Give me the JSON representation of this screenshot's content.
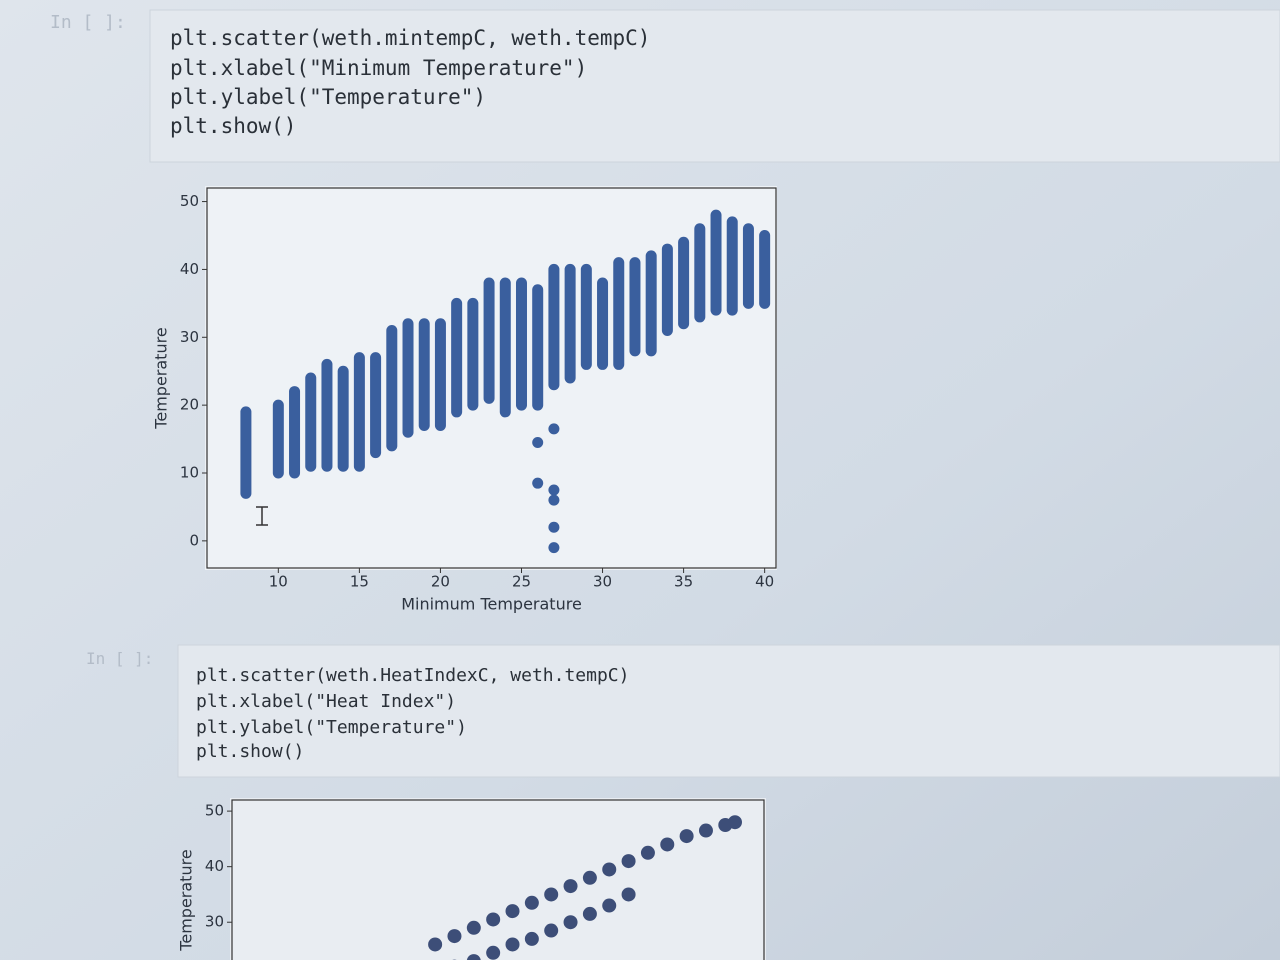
{
  "cells": [
    {
      "prompt": "In [ ]:",
      "code": [
        "plt.scatter(weth.mintempC, weth.tempC)",
        "plt.xlabel(\"Minimum Temperature\")",
        "plt.ylabel(\"Temperature\")",
        "plt.show()"
      ]
    },
    {
      "prompt": "In [ ]:",
      "code": [
        "plt.scatter(weth.HeatIndexC, weth.tempC)",
        "plt.xlabel(\"Heat Index\")",
        "plt.ylabel(\"Temperature\")",
        "plt.show()"
      ]
    }
  ],
  "chart_data": [
    {
      "type": "scatter",
      "color": "#3a5f9e",
      "xlabel": "Minimum Temperature",
      "ylabel": "Temperature",
      "x": [
        8,
        10,
        11,
        12,
        13,
        14,
        15,
        16,
        17,
        18,
        19,
        20,
        21,
        22,
        23,
        24,
        25,
        26,
        27,
        28,
        29,
        30,
        31,
        32,
        33,
        34,
        35,
        36,
        37,
        38,
        39,
        40
      ],
      "ymin": [
        7,
        10,
        10,
        11,
        11,
        11,
        11,
        13,
        14,
        16,
        17,
        17,
        19,
        20,
        21,
        19,
        20,
        20,
        23,
        24,
        26,
        26,
        26,
        28,
        28,
        31,
        32,
        33,
        34,
        34,
        35,
        35
      ],
      "ymax": [
        19,
        20,
        22,
        24,
        26,
        25,
        27,
        27,
        31,
        32,
        32,
        32,
        35,
        35,
        38,
        38,
        38,
        37,
        40,
        40,
        40,
        38,
        41,
        41,
        42,
        43,
        44,
        46,
        48,
        47,
        46,
        45
      ],
      "outliers": {
        "x": [
          26,
          26,
          27,
          27,
          27,
          27,
          27
        ],
        "y": [
          14.5,
          8.5,
          16.5,
          7.5,
          6,
          2,
          -1
        ]
      },
      "xlim": [
        5.6,
        40.7
      ],
      "ylim": [
        -4,
        52
      ],
      "xticks": [
        10,
        15,
        20,
        25,
        30,
        35,
        40
      ],
      "yticks": [
        0,
        10,
        20,
        30,
        40,
        50
      ]
    },
    {
      "type": "scatter",
      "color": "#3d4e78",
      "ylabel": "Temperature",
      "x": [
        26,
        28,
        30,
        32,
        34,
        36,
        38,
        40,
        42,
        44,
        46,
        48,
        50,
        52,
        54,
        56,
        57,
        28,
        30,
        32,
        34,
        36,
        38,
        40,
        42,
        44,
        46
      ],
      "y": [
        26,
        27.5,
        29,
        30.5,
        32,
        33.5,
        35,
        36.5,
        38,
        39.5,
        41,
        42.5,
        44,
        45.5,
        46.5,
        47.5,
        48,
        22,
        23,
        24.5,
        26,
        27,
        28.5,
        30,
        31.5,
        33,
        35
      ],
      "xlim": [
        5,
        60
      ],
      "ylim": [
        16,
        52
      ],
      "yticks": [
        30,
        40,
        50
      ]
    }
  ]
}
